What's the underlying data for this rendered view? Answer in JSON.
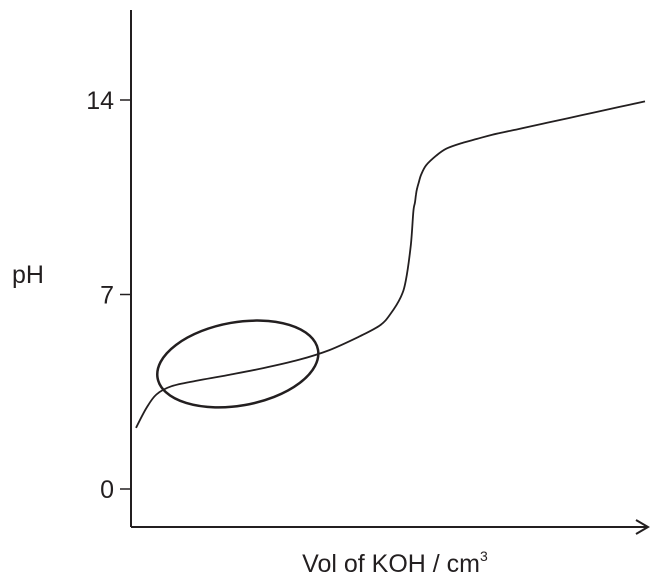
{
  "chart_data": {
    "type": "line",
    "title": "",
    "xlabel": "Vol of KOH / cm",
    "xlabel_superscript": "3",
    "ylabel": "pH",
    "ylim": [
      0,
      14
    ],
    "yticks": [
      "0",
      "7",
      "14"
    ],
    "xticks": [],
    "grid": false,
    "series": [
      {
        "x": [
          0.0,
          0.02,
          0.04,
          0.07,
          0.12,
          0.18,
          0.25,
          0.32,
          0.38,
          0.44,
          0.48,
          0.5,
          0.52,
          0.53,
          0.54,
          0.545,
          0.548,
          0.55,
          0.552,
          0.555,
          0.56,
          0.57,
          0.59,
          0.61,
          0.64,
          0.67,
          0.7,
          0.75,
          0.8,
          0.85,
          0.9,
          0.95,
          1.0
        ],
        "y": [
          2.2,
          2.9,
          3.4,
          3.7,
          3.9,
          4.1,
          4.35,
          4.65,
          5.0,
          5.5,
          5.9,
          6.3,
          6.9,
          7.5,
          8.8,
          10.0,
          10.3,
          10.6,
          10.8,
          11.0,
          11.3,
          11.65,
          12.0,
          12.25,
          12.45,
          12.6,
          12.75,
          12.95,
          13.15,
          13.35,
          13.55,
          13.75,
          13.95
        ]
      }
    ],
    "annotations": [
      {
        "type": "ellipse",
        "shape": "outline",
        "center": [
          0.2,
          4.5
        ],
        "x_halfwidth": 0.16,
        "y_halfwidth": 1.5,
        "rotation_deg": -10,
        "meaning": "buffer region"
      }
    ],
    "colors": {
      "ink": "#231f20",
      "background": "#ffffff"
    }
  }
}
